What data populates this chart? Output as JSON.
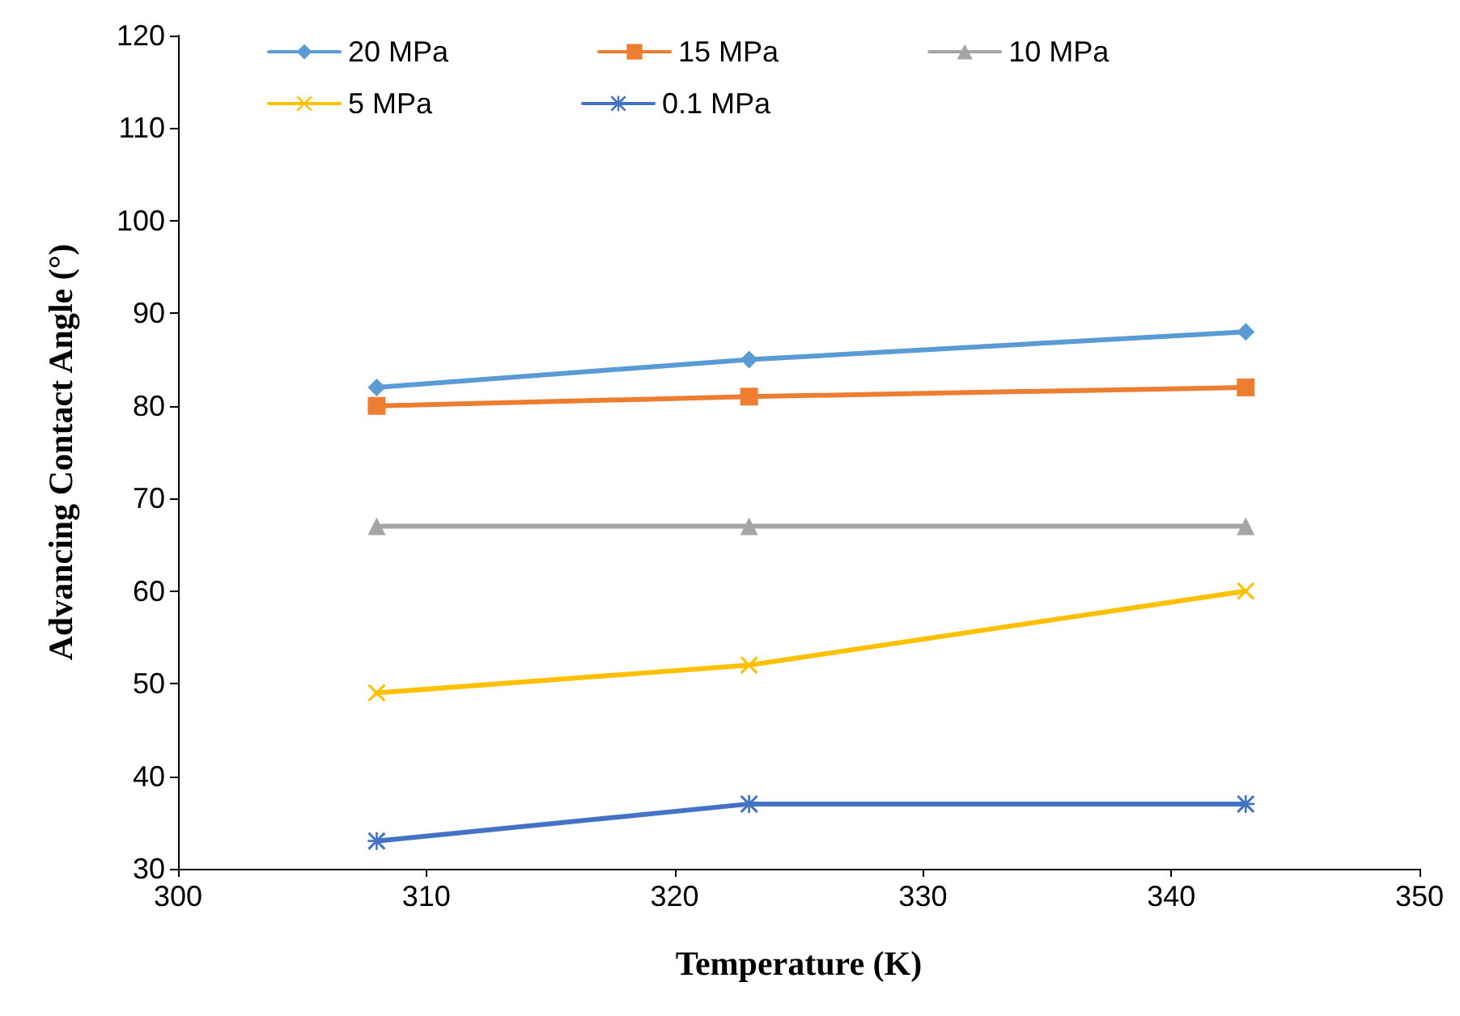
{
  "chart_data": {
    "type": "line",
    "xlabel": "Temperature (K)",
    "ylabel": "Advancing Contact Angle (°)",
    "x": [
      308,
      323,
      343
    ],
    "xlim": [
      300,
      350
    ],
    "xticks": [
      300,
      310,
      320,
      330,
      340,
      350
    ],
    "ylim": [
      30,
      120
    ],
    "yticks": [
      30,
      40,
      50,
      60,
      70,
      80,
      90,
      100,
      110,
      120
    ],
    "grid": false,
    "legend": "top",
    "series": [
      {
        "name": "20 MPa",
        "color": "#5b9bd5",
        "marker": "diamond",
        "values": [
          82,
          85,
          88
        ]
      },
      {
        "name": "15 MPa",
        "color": "#ed7d31",
        "marker": "square",
        "values": [
          80,
          81,
          82
        ]
      },
      {
        "name": "10 MPa",
        "color": "#a5a5a5",
        "marker": "triangle",
        "values": [
          67,
          67,
          67
        ]
      },
      {
        "name": "5 MPa",
        "color": "#ffc000",
        "marker": "cross",
        "values": [
          49,
          52,
          60
        ]
      },
      {
        "name": "0.1 MPa",
        "color": "#4472c4",
        "marker": "star",
        "values": [
          33,
          37,
          37
        ]
      }
    ]
  }
}
